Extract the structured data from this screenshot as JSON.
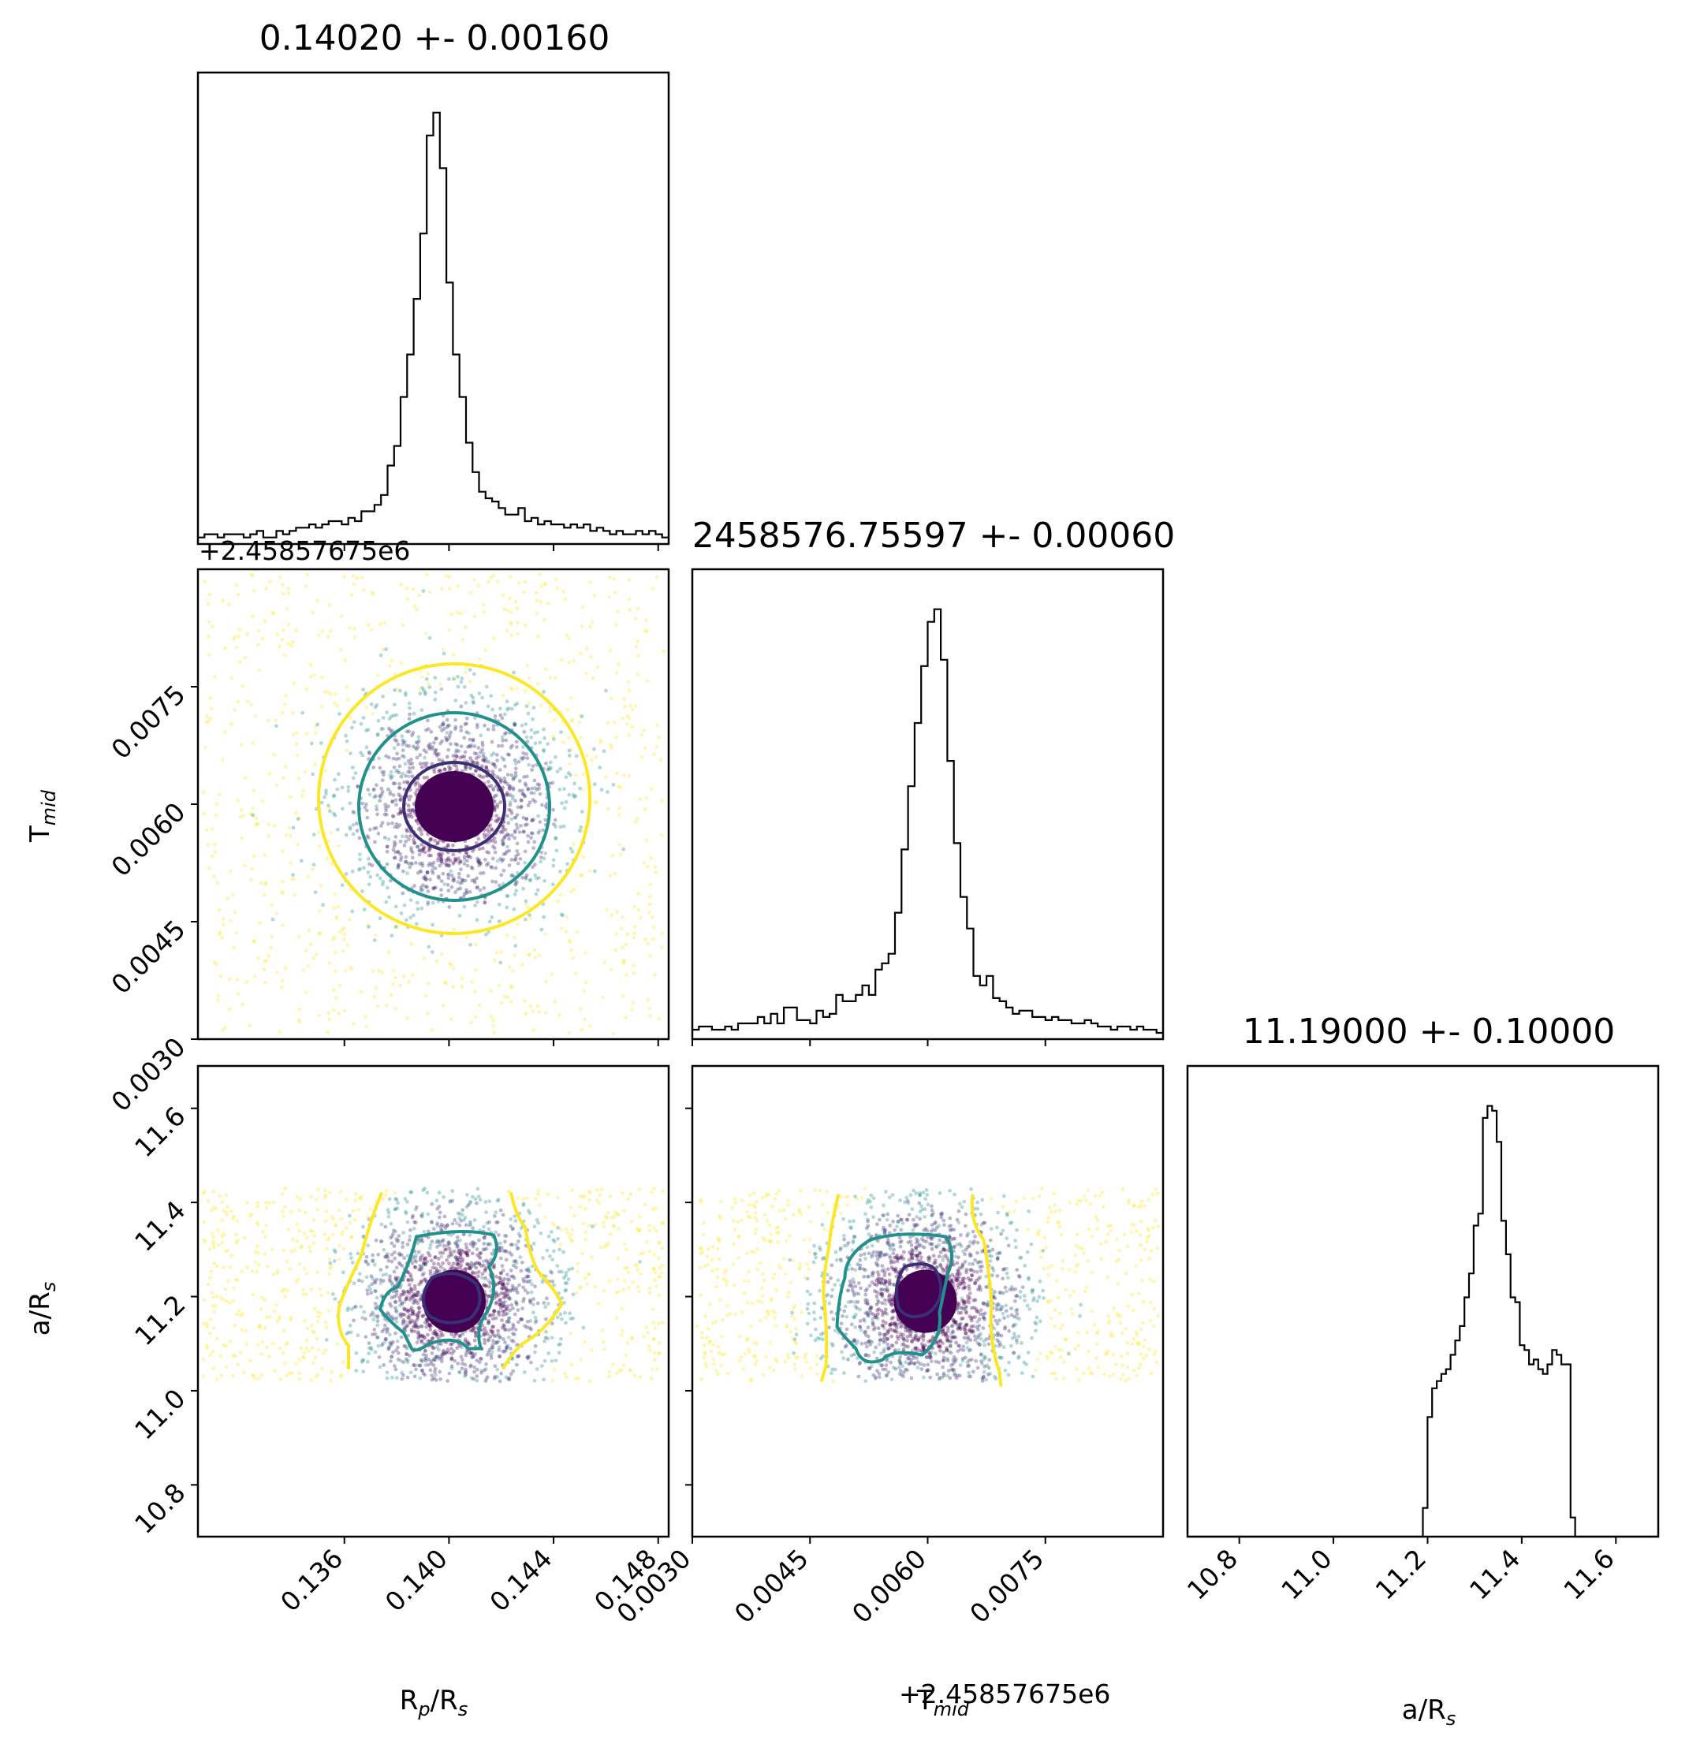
{
  "chart_data": {
    "type": "corner",
    "parameters": [
      {
        "id": "rp",
        "label_main": "R",
        "label_sub": "p",
        "label_rest": "/R",
        "label_sub2": "s",
        "title": "0.14020 +- 0.00160",
        "median": 0.1402,
        "sigma": 0.0016,
        "range": [
          0.1304,
          0.1484
        ],
        "ticks": [
          "0.136",
          "0.140",
          "0.144",
          "0.148"
        ],
        "tick_values": [
          0.136,
          0.14,
          0.144,
          0.148
        ]
      },
      {
        "id": "tmid",
        "label_main": "T",
        "label_sub": "mid",
        "title": "2458576.75597 +- 0.00060",
        "median": 2458576.75597,
        "sigma": 0.0006,
        "offset_text": "+2.45857675e6",
        "range": [
          0.003,
          0.009
        ],
        "ticks": [
          "0.0030",
          "0.0045",
          "0.0060",
          "0.0075"
        ],
        "tick_values": [
          0.003,
          0.0045,
          0.006,
          0.0075
        ]
      },
      {
        "id": "ars",
        "label_main": "a/R",
        "label_sub": "s",
        "title": "11.19000 +- 0.10000",
        "median": 11.19,
        "sigma": 0.1,
        "range": [
          10.69,
          11.69
        ],
        "ticks": [
          "10.8",
          "11.0",
          "11.2",
          "11.4",
          "11.6"
        ],
        "tick_values": [
          10.8,
          11.0,
          11.2,
          11.4,
          11.6
        ]
      }
    ],
    "histograms": {
      "rp": [
        2,
        3,
        3,
        2,
        3,
        3,
        3,
        2,
        3,
        4,
        2,
        2,
        4,
        3,
        4,
        5,
        5,
        6,
        5,
        6,
        7,
        7,
        6,
        8,
        7,
        10,
        10,
        12,
        15,
        24,
        30,
        45,
        58,
        75,
        95,
        125,
        132,
        115,
        80,
        58,
        45,
        31,
        22,
        16,
        14,
        13,
        11,
        9,
        9,
        11,
        7,
        8,
        6,
        7,
        6,
        6,
        5,
        6,
        5,
        6,
        4,
        5,
        4,
        3,
        4,
        3,
        3,
        4,
        3,
        4,
        3,
        2
      ],
      "tmid": [
        3,
        4,
        4,
        3,
        3,
        4,
        3,
        5,
        5,
        5,
        7,
        5,
        8,
        5,
        10,
        10,
        6,
        6,
        5,
        9,
        7,
        8,
        14,
        12,
        12,
        14,
        17,
        14,
        22,
        24,
        27,
        40,
        60,
        80,
        100,
        118,
        132,
        136,
        120,
        88,
        62,
        45,
        35,
        20,
        17,
        20,
        13,
        12,
        10,
        8,
        9,
        9,
        7,
        7,
        6,
        7,
        6,
        6,
        5,
        5,
        6,
        5,
        4,
        4,
        3,
        4,
        4,
        3,
        4,
        3,
        3,
        2
      ],
      "ars": [
        0,
        0,
        0,
        0,
        0,
        0,
        0,
        0,
        0,
        0,
        0,
        0,
        0,
        0,
        0,
        0,
        0,
        0,
        0,
        0,
        0,
        0,
        0,
        0,
        0,
        0,
        0,
        0,
        0,
        0,
        0,
        0,
        0,
        0,
        0,
        0,
        0,
        0,
        0,
        0,
        0,
        0,
        0,
        0,
        0,
        0,
        0,
        0,
        0,
        0,
        0,
        12,
        50,
        62,
        65,
        68,
        70,
        76,
        82,
        88,
        100,
        110,
        130,
        135,
        175,
        180,
        178,
        165,
        132,
        118,
        100,
        98,
        80,
        78,
        72,
        74,
        70,
        68,
        72,
        78,
        76,
        72,
        72,
        8,
        0,
        0,
        0,
        0,
        0,
        0,
        0,
        0,
        0,
        0,
        0,
        0,
        0,
        0,
        0,
        0,
        0,
        0
      ],
      "ars_counts_note": ""
    },
    "contour_levels": [
      "0.5 (dark)",
      "0.86 (teal)",
      "0.99 (yellow)"
    ],
    "colors": {
      "hist": "#000000",
      "level_inner": "#3b2f76",
      "level_mid": "#21918c",
      "level_outer": "#fde725",
      "core": "#440154"
    }
  }
}
